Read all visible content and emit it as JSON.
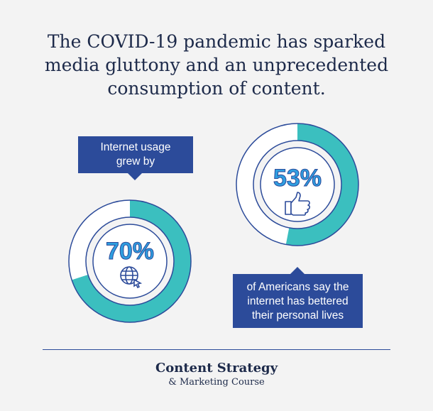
{
  "headline": [
    "The COVID-19 pandemic has sparked",
    "media gluttony and an unprecedented",
    "consumption of content."
  ],
  "stat_left": {
    "caption": [
      "Internet usage",
      "grew by"
    ],
    "value": "70%",
    "fraction": 0.7,
    "icon": "globe-cursor-icon"
  },
  "stat_right": {
    "value": "53%",
    "fraction": 0.53,
    "icon": "thumbs-up-icon",
    "caption": [
      "of Americans say the",
      "internet has bettered",
      "their personal lives"
    ]
  },
  "brand": {
    "name": "Content Strategy",
    "subtitle": "& Marketing Course"
  },
  "colors": {
    "background": "#f3f3f3",
    "navy": "#2c4b9a",
    "teal": "#3bbfbf",
    "value_blue": "#2f9fe0",
    "headline": "#1d2a4a"
  }
}
